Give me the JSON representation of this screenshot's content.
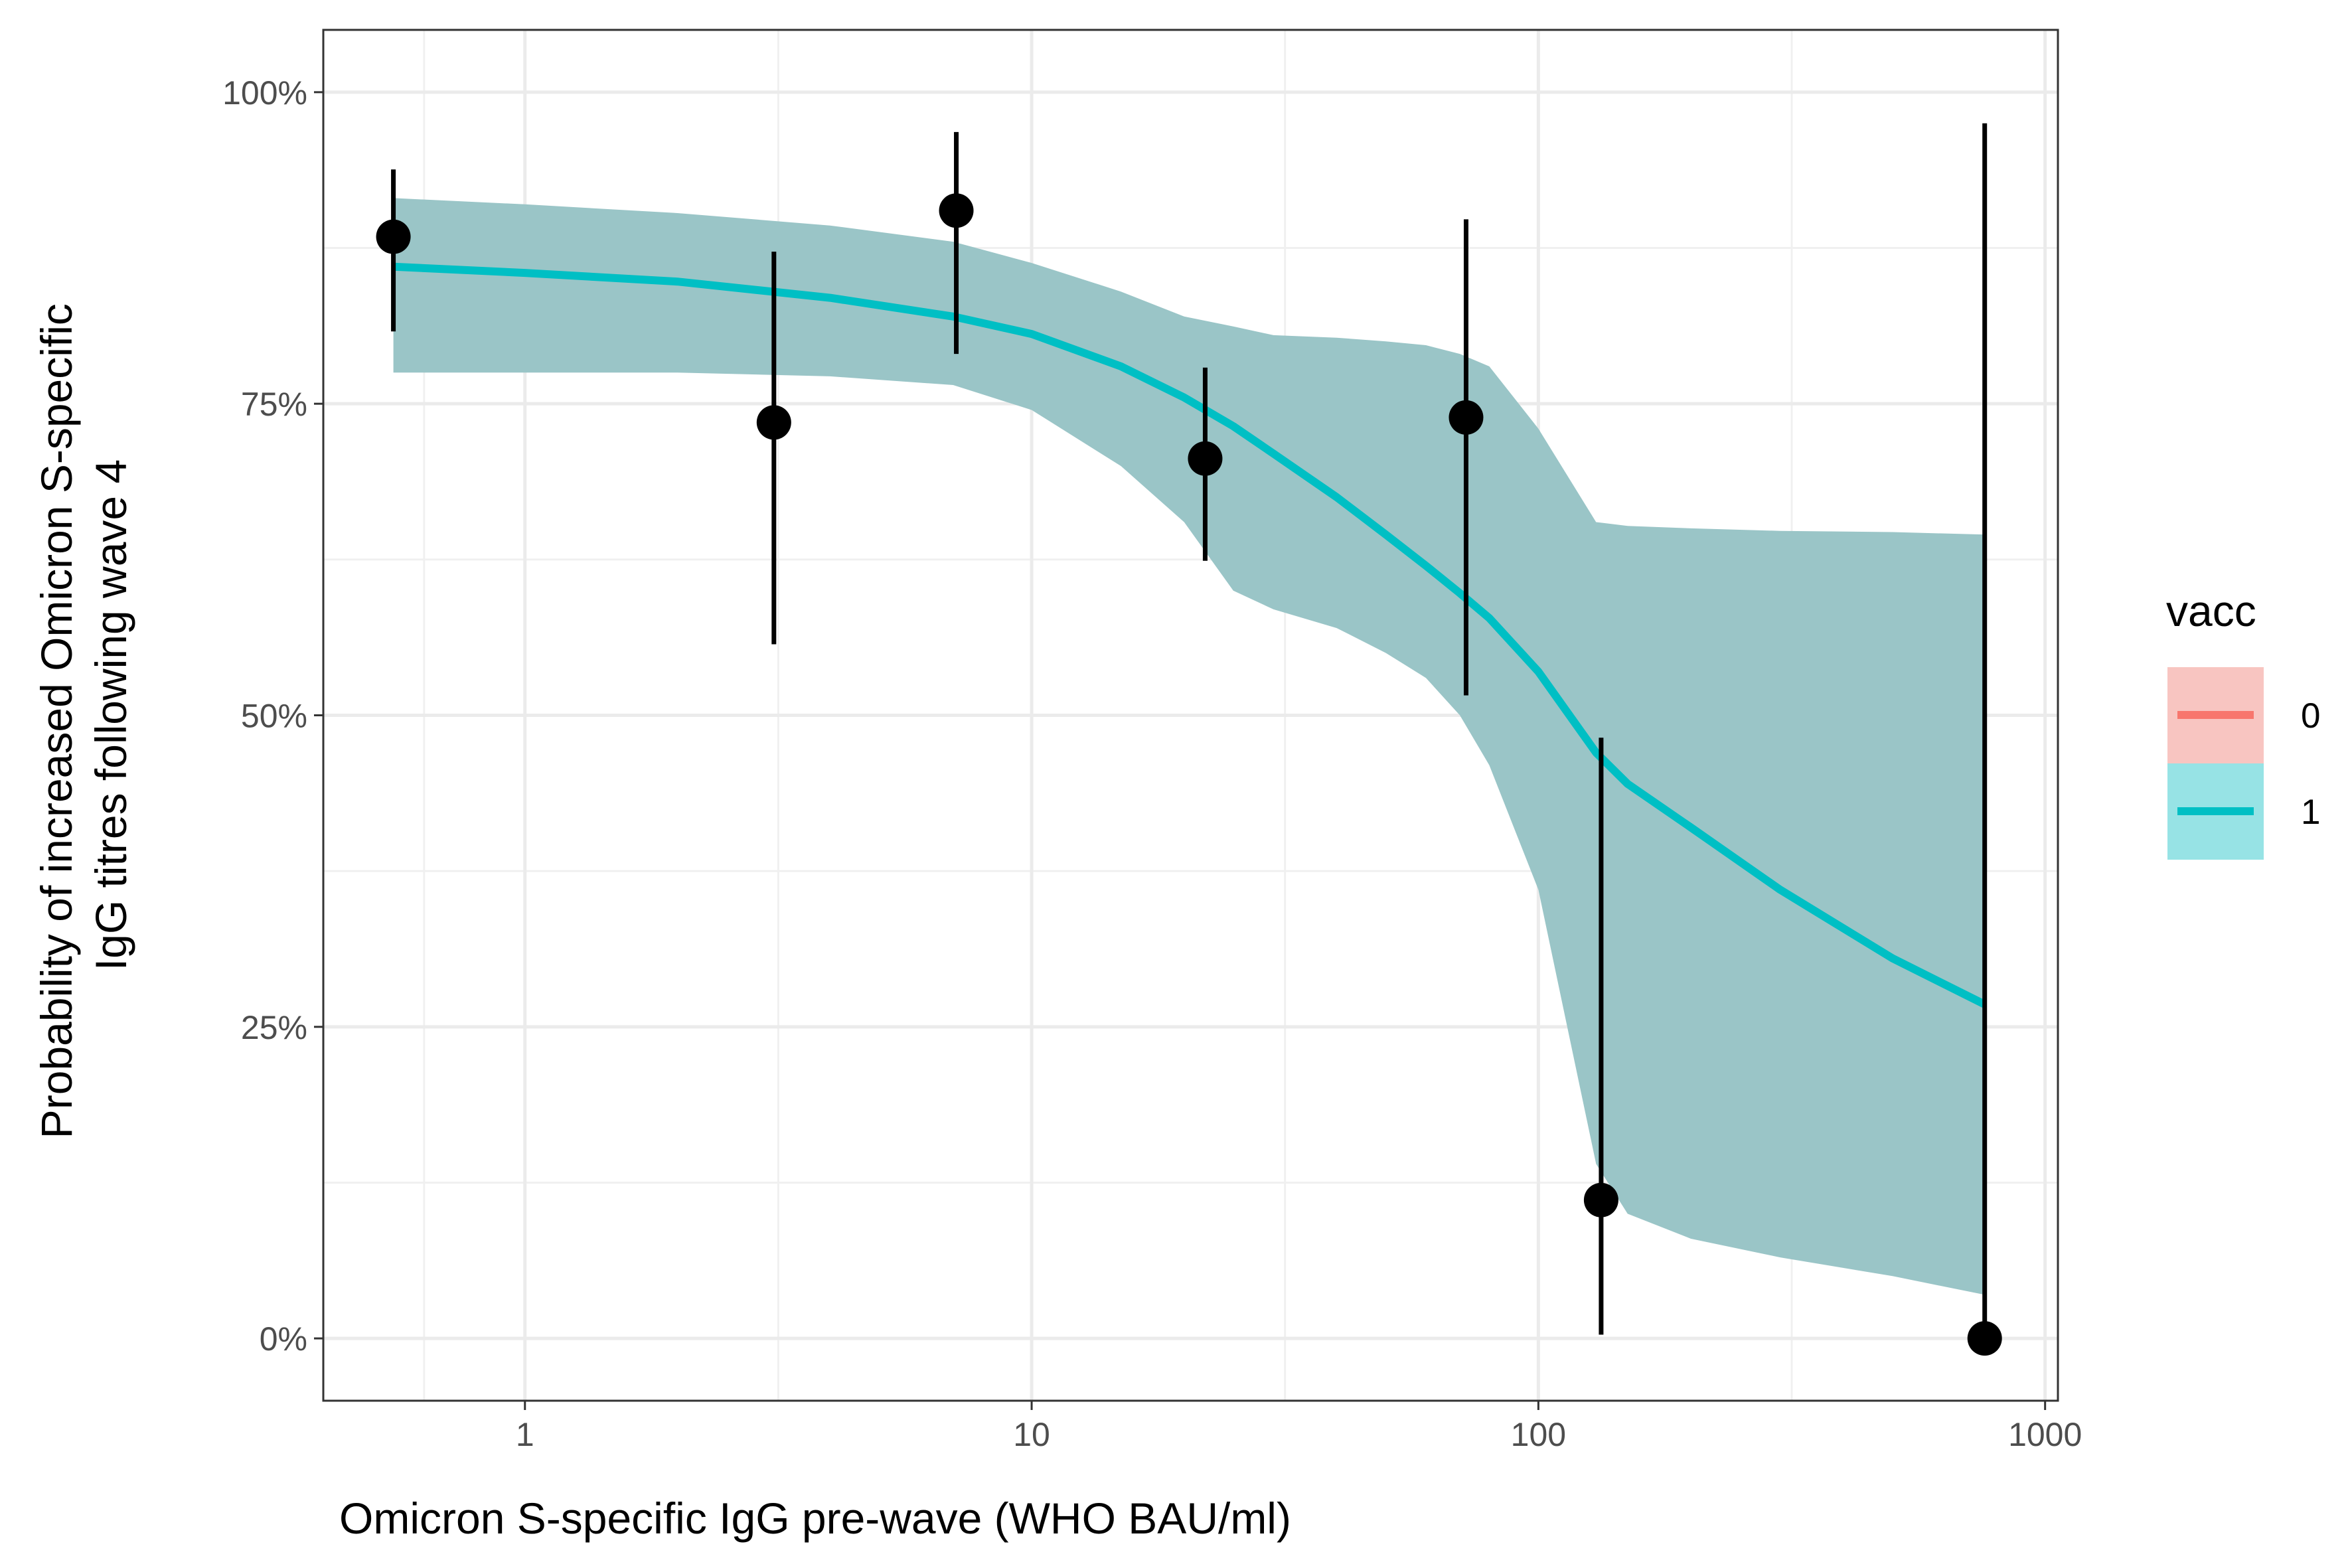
{
  "chart_data": {
    "type": "scatter",
    "xlabel": "Omicron S-specific IgG pre-wave (WHO BAU/ml)",
    "ylabel_lines": [
      "Probability of increased Omicron S-specific",
      "IgG titres following wave 4"
    ],
    "x_scale": "log10",
    "xlim": [
      0.4,
      1060
    ],
    "ylim": [
      -0.05,
      1.05
    ],
    "x_ticks": [
      1,
      10,
      100,
      1000
    ],
    "x_tick_labels": [
      "1",
      "10",
      "100",
      "1000"
    ],
    "y_ticks": [
      0,
      0.25,
      0.5,
      0.75,
      1.0
    ],
    "y_tick_labels": [
      "0%",
      "25%",
      "50%",
      "75%",
      "100%"
    ],
    "grid": true,
    "colors": {
      "vacc_0": "#F8766D",
      "vacc_1": "#00BFC4",
      "ribbon": "#9AC5C7",
      "points": "#000000"
    },
    "points": [
      {
        "x": 0.55,
        "y": 0.884,
        "lower": 0.808,
        "upper": 0.938
      },
      {
        "x": 3.1,
        "y": 0.735,
        "lower": 0.557,
        "upper": 0.872
      },
      {
        "x": 7.1,
        "y": 0.905,
        "lower": 0.79,
        "upper": 0.968
      },
      {
        "x": 22,
        "y": 0.706,
        "lower": 0.624,
        "upper": 0.779
      },
      {
        "x": 72,
        "y": 0.739,
        "lower": 0.516,
        "upper": 0.898
      },
      {
        "x": 133,
        "y": 0.111,
        "lower": 0.003,
        "upper": 0.482
      },
      {
        "x": 760,
        "y": 0.0,
        "lower": 0.0,
        "upper": 0.975
      }
    ],
    "fit": {
      "x": [
        0.55,
        1,
        2,
        4,
        7,
        10,
        15,
        20,
        25,
        30,
        40,
        50,
        60,
        70,
        80,
        100,
        130,
        150,
        200,
        300,
        500,
        760
      ],
      "y": [
        0.86,
        0.855,
        0.848,
        0.835,
        0.82,
        0.806,
        0.78,
        0.755,
        0.732,
        0.71,
        0.675,
        0.645,
        0.62,
        0.598,
        0.578,
        0.535,
        0.47,
        0.445,
        0.41,
        0.36,
        0.305,
        0.268
      ],
      "lower": [
        0.775,
        0.775,
        0.775,
        0.772,
        0.765,
        0.745,
        0.7,
        0.655,
        0.6,
        0.585,
        0.57,
        0.55,
        0.53,
        0.5,
        0.46,
        0.36,
        0.14,
        0.1,
        0.08,
        0.065,
        0.05,
        0.035
      ],
      "upper": [
        0.915,
        0.91,
        0.903,
        0.893,
        0.88,
        0.863,
        0.84,
        0.82,
        0.812,
        0.805,
        0.803,
        0.8,
        0.797,
        0.79,
        0.78,
        0.73,
        0.655,
        0.652,
        0.65,
        0.648,
        0.647,
        0.645
      ]
    },
    "legend": {
      "title": "vacc",
      "placement": "right",
      "items": [
        {
          "label": "0",
          "color": "#F8766D",
          "fill": "#F8C5C1"
        },
        {
          "label": "1",
          "color": "#00BFC4",
          "fill": "#97E3E5"
        }
      ]
    }
  }
}
